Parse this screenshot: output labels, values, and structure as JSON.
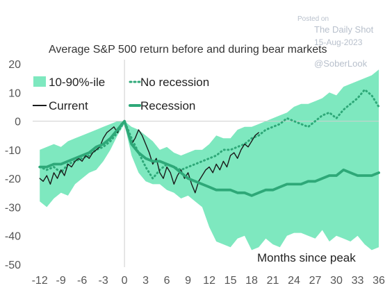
{
  "watermark": {
    "line1": "Posted on",
    "line2": "The Daily Shot",
    "line3": "15-Aug-2023",
    "line4": "@SoberLook"
  },
  "chart_data": {
    "type": "line",
    "title": "Average S&P 500 return before and during bear markets",
    "xlabel": "Months since peak",
    "ylabel": "",
    "xlim": [
      -13,
      36
    ],
    "ylim": [
      -50,
      20
    ],
    "x_ticks": [
      -12,
      -9,
      -6,
      -3,
      0,
      3,
      6,
      9,
      12,
      15,
      18,
      21,
      24,
      27,
      30,
      33,
      36
    ],
    "y_ticks": [
      20,
      10,
      0,
      -10,
      -20,
      -30,
      -40,
      -50
    ],
    "legend_position": "top-left",
    "colors": {
      "band": "#7ee8bf",
      "recession": "#2ea878",
      "no_recession": "#2ea878",
      "current": "#1a1a1a",
      "zero_line": "#cfcfcf"
    },
    "series": [
      {
        "name": "10-90%-ile",
        "style": "band",
        "x": [
          -12,
          -11,
          -10,
          -9,
          -8,
          -7,
          -6,
          -5,
          -4,
          -3,
          -2,
          -1,
          0,
          1,
          2,
          3,
          4,
          5,
          6,
          7,
          8,
          9,
          10,
          11,
          12,
          13,
          14,
          15,
          16,
          17,
          18,
          19,
          20,
          21,
          22,
          23,
          24,
          25,
          26,
          27,
          28,
          29,
          30,
          31,
          32,
          33,
          34,
          35,
          36
        ],
        "upper": [
          -10,
          -9,
          -8,
          -9,
          -7,
          -6,
          -5,
          -4,
          -3,
          -2,
          -1,
          0,
          0,
          -2,
          -3,
          -5,
          -7,
          -10,
          -9,
          -11,
          -12,
          -11,
          -10,
          -10,
          -8,
          -5,
          -6,
          -6,
          -3,
          -2,
          -2,
          -1,
          0,
          1,
          2,
          3,
          5,
          6,
          6,
          7,
          8,
          10,
          9,
          12,
          13,
          14,
          15,
          16,
          18
        ],
        "lower": [
          -28,
          -30,
          -27,
          -25,
          -26,
          -22,
          -20,
          -18,
          -17,
          -14,
          -10,
          -5,
          -1,
          -12,
          -18,
          -21,
          -22,
          -22,
          -24,
          -25,
          -27,
          -26,
          -28,
          -30,
          -37,
          -42,
          -43,
          -44,
          -41,
          -40,
          -45,
          -44,
          -41,
          -43,
          -44,
          -40,
          -39,
          -39,
          -40,
          -41,
          -38,
          -42,
          -40,
          -41,
          -42,
          -40,
          -43,
          -45,
          -44
        ]
      },
      {
        "name": "No recession",
        "style": "dotted",
        "x": [
          -12,
          -11,
          -10,
          -9,
          -8,
          -7,
          -6,
          -5,
          -4,
          -3,
          -2,
          -1,
          0,
          1,
          2,
          3,
          4,
          5,
          6,
          7,
          8,
          9,
          10,
          11,
          12,
          13,
          14,
          15,
          16,
          17,
          18,
          19,
          20,
          21,
          22,
          23,
          24,
          25,
          26,
          27,
          28,
          29,
          30,
          31,
          32,
          33,
          34,
          35,
          36
        ],
        "y": [
          -16,
          -17,
          -16,
          -18,
          -15,
          -14,
          -13,
          -12,
          -10,
          -9,
          -7,
          -4,
          0,
          -6,
          -11,
          -16,
          -20,
          -17,
          -15,
          -16,
          -17,
          -16,
          -15,
          -14,
          -13,
          -12,
          -10,
          -10,
          -9,
          -8,
          -6,
          -5,
          -3,
          -2,
          -1,
          1,
          0,
          -1,
          -2,
          0,
          2,
          3,
          1,
          4,
          6,
          8,
          11,
          9,
          5
        ]
      },
      {
        "name": "Current",
        "style": "solid-thin",
        "x": [
          -12,
          -11.5,
          -11,
          -10.5,
          -10,
          -9.5,
          -9,
          -8.5,
          -8,
          -7.5,
          -7,
          -6.5,
          -6,
          -5.5,
          -5,
          -4.5,
          -4,
          -3.5,
          -3,
          -2.5,
          -2,
          -1.5,
          -1,
          -0.5,
          0,
          0.5,
          1,
          1.5,
          2,
          2.5,
          3,
          3.5,
          4,
          4.5,
          5,
          5.5,
          6,
          6.5,
          7,
          7.5,
          8,
          8.5,
          9,
          9.5,
          10,
          10.5,
          11,
          11.5,
          12,
          12.5,
          13,
          13.5,
          14,
          14.5,
          15,
          15.5,
          16,
          16.5,
          17,
          17.5,
          18,
          18.5,
          19
        ],
        "y": [
          -20,
          -21,
          -19,
          -22,
          -18,
          -20,
          -17,
          -19,
          -15,
          -16,
          -14,
          -13,
          -14,
          -12,
          -13,
          -11,
          -10,
          -9,
          -6,
          -4,
          -3,
          -2,
          -4,
          -1,
          0,
          -3,
          -8,
          -6,
          -3,
          -5,
          -8,
          -11,
          -15,
          -13,
          -18,
          -20,
          -16,
          -18,
          -22,
          -19,
          -17,
          -20,
          -18,
          -22,
          -25,
          -21,
          -19,
          -17,
          -16,
          -18,
          -15,
          -17,
          -14,
          -16,
          -12,
          -11,
          -13,
          -10,
          -8,
          -9,
          -7,
          -5,
          -4
        ]
      },
      {
        "name": "Recession",
        "style": "solid-thick",
        "x": [
          -12,
          -11,
          -10,
          -9,
          -8,
          -7,
          -6,
          -5,
          -4,
          -3,
          -2,
          -1,
          0,
          1,
          2,
          3,
          4,
          5,
          6,
          7,
          8,
          9,
          10,
          11,
          12,
          13,
          14,
          15,
          16,
          17,
          18,
          19,
          20,
          21,
          22,
          23,
          24,
          25,
          26,
          27,
          28,
          29,
          30,
          31,
          32,
          33,
          34,
          35,
          36
        ],
        "y": [
          -16,
          -16,
          -15,
          -15,
          -14,
          -13,
          -12,
          -11,
          -9,
          -8,
          -6,
          -3,
          0,
          -8,
          -11,
          -13,
          -14,
          -14,
          -15,
          -16,
          -18,
          -20,
          -21,
          -22,
          -23,
          -24,
          -24,
          -24,
          -25,
          -25,
          -26,
          -25,
          -24,
          -24,
          -23,
          -22,
          -22,
          -22,
          -21,
          -21,
          -20,
          -19,
          -19,
          -17,
          -18,
          -19,
          -19,
          -19,
          -18
        ]
      }
    ]
  }
}
